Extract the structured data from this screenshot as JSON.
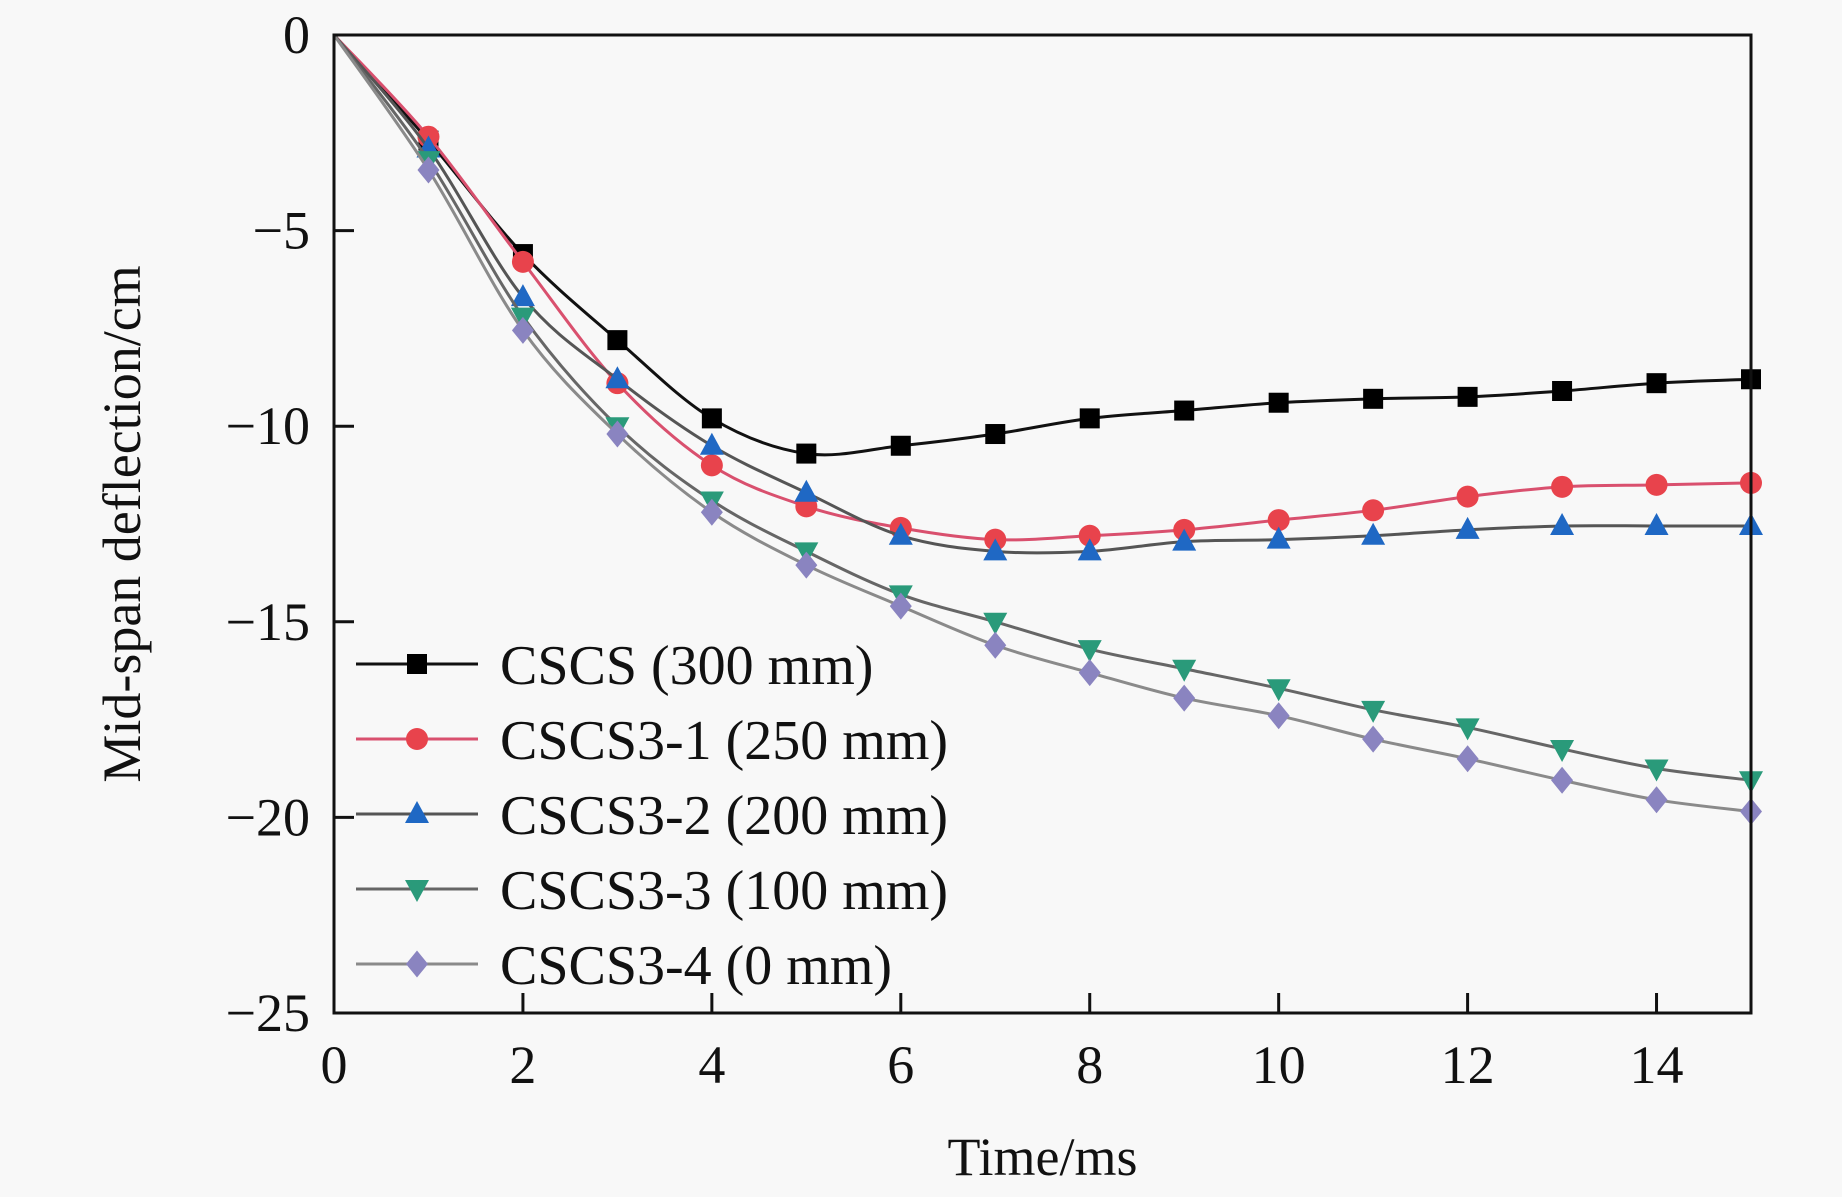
{
  "chart_data": {
    "type": "line",
    "title": "",
    "xlabel": "Time/ms",
    "ylabel": "Mid-span deflection/cm",
    "xlim": [
      0,
      15
    ],
    "ylim": [
      -25,
      0
    ],
    "xticks": [
      0,
      2,
      4,
      6,
      8,
      10,
      12,
      14
    ],
    "yticks": [
      0,
      -5,
      -10,
      -15,
      -20,
      -25
    ],
    "xtick_labels": [
      "0",
      "2",
      "4",
      "6",
      "8",
      "10",
      "12",
      "14"
    ],
    "ytick_labels": [
      "0",
      "−5",
      "−10",
      "−15",
      "−20",
      "−25"
    ],
    "grid": false,
    "legend_position": "bottom-left",
    "x": [
      0,
      1,
      2,
      3,
      4,
      5,
      6,
      7,
      8,
      9,
      10,
      11,
      12,
      13,
      14,
      15
    ],
    "series": [
      {
        "name": "CSCS (300 mm)",
        "marker": "square",
        "line_color": "#111111",
        "marker_color": "#000000",
        "values": [
          0,
          -2.7,
          -5.6,
          -7.8,
          -9.8,
          -10.7,
          -10.5,
          -10.2,
          -9.8,
          -9.6,
          -9.4,
          -9.3,
          -9.25,
          -9.1,
          -8.9,
          -8.8
        ]
      },
      {
        "name": "CSCS3-1 (250 mm)",
        "marker": "circle",
        "line_color": "#d9506e",
        "marker_color": "#e8434c",
        "values": [
          0,
          -2.6,
          -5.8,
          -8.9,
          -11.0,
          -12.05,
          -12.6,
          -12.9,
          -12.8,
          -12.65,
          -12.4,
          -12.15,
          -11.8,
          -11.55,
          -11.5,
          -11.45
        ]
      },
      {
        "name": "CSCS3-2 (200 mm)",
        "marker": "triangle-up",
        "line_color": "#555555",
        "marker_color": "#1f68c4",
        "values": [
          0,
          -2.9,
          -6.7,
          -8.8,
          -10.5,
          -11.7,
          -12.8,
          -13.2,
          -13.2,
          -12.95,
          -12.9,
          -12.8,
          -12.65,
          -12.55,
          -12.55,
          -12.55
        ]
      },
      {
        "name": "CSCS3-3 (100 mm)",
        "marker": "triangle-down",
        "line_color": "#666666",
        "marker_color": "#2a9a7a",
        "values": [
          0,
          -3.2,
          -7.2,
          -10.0,
          -11.9,
          -13.2,
          -14.3,
          -15.0,
          -15.7,
          -16.2,
          -16.7,
          -17.25,
          -17.7,
          -18.25,
          -18.75,
          -19.05
        ]
      },
      {
        "name": "CSCS3-4 (0 mm)",
        "marker": "diamond",
        "line_color": "#8a8a8a",
        "marker_color": "#8a84c0",
        "values": [
          0,
          -3.45,
          -7.55,
          -10.2,
          -12.2,
          -13.55,
          -14.6,
          -15.6,
          -16.3,
          -16.95,
          -17.4,
          -18.0,
          -18.5,
          -19.05,
          -19.55,
          -19.85
        ]
      }
    ]
  }
}
